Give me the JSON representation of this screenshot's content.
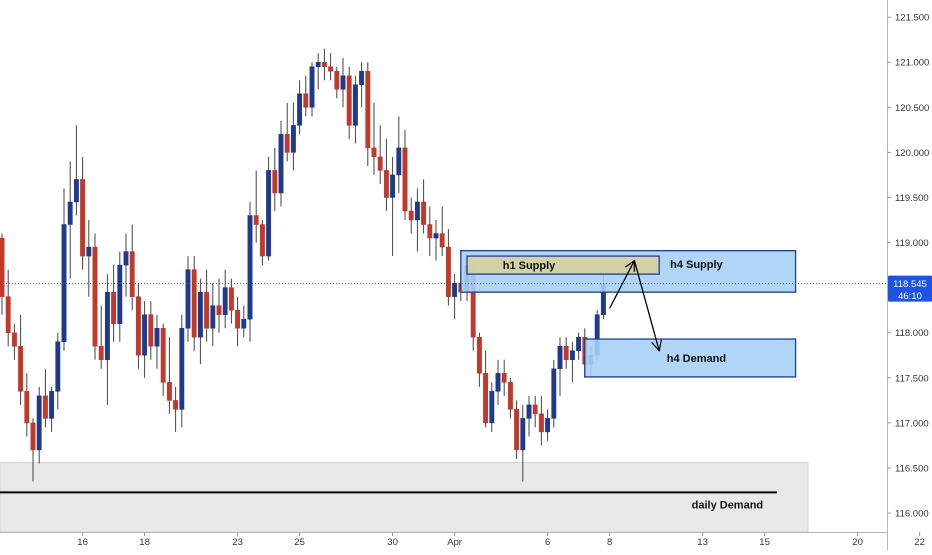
{
  "chart_data": {
    "type": "candlestick",
    "title": "",
    "xlabel": "",
    "ylabel": "",
    "ylim": [
      115.79,
      121.69
    ],
    "y_ticks": [
      116.0,
      116.5,
      117.0,
      117.5,
      118.0,
      118.5,
      119.0,
      119.5,
      120.0,
      120.5,
      121.0,
      121.5
    ],
    "y_tick_labels": [
      "116.000",
      "116.500",
      "117.000",
      "117.500",
      "118.000",
      "118.500",
      "119.000",
      "119.500",
      "120.000",
      "120.500",
      "121.000",
      "121.500"
    ],
    "x_ticks": [
      {
        "label": "16",
        "bar": 13
      },
      {
        "label": "18",
        "bar": 23
      },
      {
        "label": "23",
        "bar": 38
      },
      {
        "label": "25",
        "bar": 48
      },
      {
        "label": "30",
        "bar": 63
      },
      {
        "label": "Apr",
        "bar": 73
      },
      {
        "label": "6",
        "bar": 88
      },
      {
        "label": "8",
        "bar": 98
      },
      {
        "label": "13",
        "bar": 113
      },
      {
        "label": "15",
        "bar": 123
      },
      {
        "label": "20",
        "bar": 138
      },
      {
        "label": "22",
        "bar": 148
      }
    ],
    "x_range": [
      0,
      153
    ],
    "grid": false,
    "last_price": {
      "value": 118.545,
      "label": "118.545",
      "countdown": "46:10",
      "color": "#1e53e5"
    },
    "colors": {
      "up": "#1e3a8a",
      "down": "#c0392b",
      "wick": "#444444"
    },
    "candles_ohlc": [
      [
        119.05,
        119.1,
        118.2,
        118.4
      ],
      [
        118.4,
        118.7,
        117.85,
        118.0
      ],
      [
        118.0,
        118.1,
        117.7,
        117.85
      ],
      [
        117.85,
        118.2,
        117.2,
        117.35
      ],
      [
        117.35,
        117.55,
        116.85,
        117.0
      ],
      [
        117.0,
        117.05,
        116.35,
        116.7
      ],
      [
        116.7,
        117.4,
        116.55,
        117.3
      ],
      [
        117.3,
        117.6,
        116.95,
        117.05
      ],
      [
        117.05,
        117.4,
        116.9,
        117.35
      ],
      [
        117.35,
        118.0,
        117.15,
        117.9
      ],
      [
        117.9,
        119.6,
        117.8,
        119.2
      ],
      [
        119.2,
        119.9,
        118.6,
        119.45
      ],
      [
        119.45,
        120.3,
        119.3,
        119.7
      ],
      [
        119.7,
        119.95,
        118.7,
        118.85
      ],
      [
        118.85,
        119.25,
        118.4,
        118.95
      ],
      [
        118.95,
        119.1,
        117.7,
        117.85
      ],
      [
        117.85,
        118.3,
        117.6,
        117.7
      ],
      [
        117.7,
        118.65,
        117.2,
        118.45
      ],
      [
        118.45,
        118.75,
        117.9,
        118.1
      ],
      [
        118.1,
        118.9,
        117.9,
        118.75
      ],
      [
        118.75,
        119.1,
        118.4,
        118.9
      ],
      [
        118.9,
        119.2,
        118.25,
        118.4
      ],
      [
        118.4,
        118.55,
        117.6,
        117.75
      ],
      [
        117.75,
        118.35,
        117.5,
        118.2
      ],
      [
        118.2,
        118.35,
        117.7,
        117.85
      ],
      [
        117.85,
        118.2,
        117.6,
        118.05
      ],
      [
        118.05,
        118.1,
        117.3,
        117.45
      ],
      [
        117.45,
        117.95,
        117.1,
        117.25
      ],
      [
        117.25,
        117.4,
        116.9,
        117.15
      ],
      [
        117.15,
        118.2,
        116.95,
        118.05
      ],
      [
        118.05,
        118.85,
        117.9,
        118.7
      ],
      [
        118.7,
        118.85,
        117.8,
        117.95
      ],
      [
        117.95,
        118.6,
        117.65,
        118.45
      ],
      [
        118.45,
        118.7,
        117.9,
        118.05
      ],
      [
        118.05,
        118.55,
        117.85,
        118.3
      ],
      [
        118.3,
        118.6,
        118.0,
        118.2
      ],
      [
        118.2,
        118.7,
        118.05,
        118.5
      ],
      [
        118.5,
        118.6,
        118.1,
        118.25
      ],
      [
        118.25,
        118.4,
        117.85,
        118.05
      ],
      [
        118.05,
        118.3,
        117.95,
        118.15
      ],
      [
        118.15,
        119.45,
        117.9,
        119.3
      ],
      [
        119.3,
        119.8,
        119.0,
        119.2
      ],
      [
        119.2,
        119.25,
        118.75,
        118.85
      ],
      [
        118.85,
        119.95,
        118.8,
        119.8
      ],
      [
        119.8,
        120.05,
        119.35,
        119.55
      ],
      [
        119.55,
        120.35,
        119.4,
        120.2
      ],
      [
        120.2,
        120.55,
        119.9,
        120.0
      ],
      [
        120.0,
        120.55,
        119.8,
        120.3
      ],
      [
        120.3,
        120.8,
        120.2,
        120.65
      ],
      [
        120.65,
        120.85,
        120.4,
        120.5
      ],
      [
        120.5,
        121.0,
        120.4,
        120.95
      ],
      [
        120.95,
        121.1,
        120.7,
        121.0
      ],
      [
        121.0,
        121.15,
        120.8,
        120.95
      ],
      [
        120.95,
        121.1,
        120.8,
        120.9
      ],
      [
        120.9,
        120.95,
        120.6,
        120.7
      ],
      [
        120.7,
        121.05,
        120.5,
        120.85
      ],
      [
        120.85,
        120.95,
        120.15,
        120.3
      ],
      [
        120.3,
        120.85,
        120.1,
        120.75
      ],
      [
        120.75,
        121.0,
        120.5,
        120.9
      ],
      [
        120.9,
        121.0,
        119.85,
        120.05
      ],
      [
        120.05,
        120.55,
        119.75,
        119.95
      ],
      [
        119.95,
        120.3,
        119.65,
        119.8
      ],
      [
        119.8,
        120.15,
        119.35,
        119.5
      ],
      [
        119.5,
        119.95,
        118.85,
        119.75
      ],
      [
        119.75,
        120.4,
        119.55,
        120.05
      ],
      [
        120.05,
        120.25,
        119.25,
        119.35
      ],
      [
        119.35,
        119.5,
        119.1,
        119.25
      ],
      [
        119.25,
        119.6,
        118.9,
        119.45
      ],
      [
        119.45,
        119.7,
        119.1,
        119.2
      ],
      [
        119.2,
        119.4,
        118.85,
        119.05
      ],
      [
        119.05,
        119.25,
        118.8,
        119.1
      ],
      [
        119.1,
        119.4,
        118.85,
        118.95
      ],
      [
        118.95,
        119.15,
        118.3,
        118.4
      ],
      [
        118.4,
        118.65,
        118.15,
        118.55
      ],
      [
        118.55,
        118.7,
        118.35,
        118.45
      ],
      [
        118.45,
        118.8,
        118.35,
        118.75
      ],
      [
        118.75,
        118.8,
        117.8,
        117.95
      ],
      [
        117.95,
        118.0,
        117.4,
        117.55
      ],
      [
        117.55,
        117.8,
        116.95,
        117.0
      ],
      [
        117.0,
        117.45,
        116.9,
        117.35
      ],
      [
        117.35,
        117.7,
        117.2,
        117.55
      ],
      [
        117.55,
        117.7,
        117.3,
        117.45
      ],
      [
        117.45,
        117.5,
        117.05,
        117.15
      ],
      [
        117.15,
        117.25,
        116.6,
        116.7
      ],
      [
        116.7,
        117.2,
        116.35,
        117.05
      ],
      [
        117.05,
        117.3,
        116.85,
        117.2
      ],
      [
        117.2,
        117.3,
        116.95,
        117.1
      ],
      [
        117.1,
        117.3,
        116.75,
        116.9
      ],
      [
        116.9,
        117.15,
        116.8,
        117.05
      ],
      [
        117.05,
        117.7,
        116.95,
        117.6
      ],
      [
        117.6,
        117.95,
        117.3,
        117.85
      ],
      [
        117.85,
        117.95,
        117.6,
        117.7
      ],
      [
        117.7,
        117.9,
        117.45,
        117.8
      ],
      [
        117.8,
        118.0,
        117.7,
        117.95
      ],
      [
        117.95,
        118.05,
        117.5,
        117.65
      ],
      [
        117.65,
        117.85,
        117.5,
        117.75
      ],
      [
        117.75,
        118.25,
        117.7,
        118.2
      ],
      [
        118.2,
        118.85,
        118.15,
        118.55
      ]
    ]
  },
  "zones": [
    {
      "name": "daily-demand",
      "label": "daily Demand",
      "y_low": 115.79,
      "y_high": 116.56,
      "bar_from": 0,
      "bar_to": 130,
      "fill": "#e9e9e9",
      "stroke": "#d6d6d6",
      "label_at": 117.0
    },
    {
      "name": "h4-supply",
      "label": "h4 Supply",
      "y_low": 118.45,
      "y_high": 118.91,
      "bar_from": 74,
      "bar_to": 128,
      "fill": "#a9d0f5",
      "stroke": "#1c3f93",
      "label_at": 112.0
    },
    {
      "name": "h1-supply",
      "label": "h1 Supply",
      "y_low": 118.65,
      "y_high": 118.85,
      "bar_from": 75,
      "bar_to": 106,
      "fill": "#d8cf9f",
      "stroke": "#1c3f93",
      "label_at": 85.0
    },
    {
      "name": "h4-demand",
      "label": "h4 Demand",
      "y_low": 117.51,
      "y_high": 117.93,
      "bar_from": 94,
      "bar_to": 128,
      "fill": "#a9d0f5",
      "stroke": "#1c3f93",
      "label_at": 112.0
    }
  ],
  "hline": {
    "y": 116.23,
    "bar_from": 0,
    "bar_to": 125,
    "color": "#000000"
  },
  "arrows": [
    {
      "points": [
        [
          98.0,
          118.27
        ],
        [
          102.0,
          118.8
        ]
      ],
      "color": "#000000"
    },
    {
      "points": [
        [
          102.0,
          118.8
        ],
        [
          106.0,
          117.8
        ]
      ],
      "color": "#000000"
    }
  ]
}
